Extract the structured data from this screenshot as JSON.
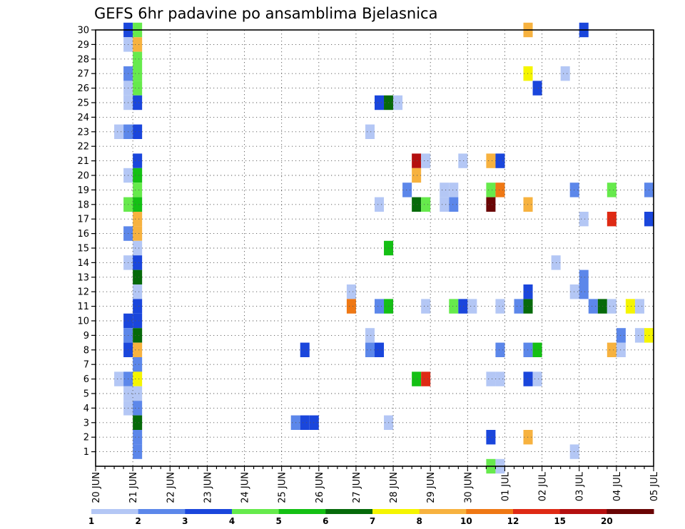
{
  "chart_data": {
    "type": "heatmap",
    "title": "GEFS 6hr padavine po ansamblima Bjelasnica",
    "xlabel": "",
    "ylabel": "",
    "x_start": "20 JUN",
    "x_step_hours": 6,
    "x_tick_labels": [
      "20 JUN",
      "21 JUN",
      "22 JUN",
      "23 JUN",
      "24 JUN",
      "25 JUN",
      "26 JUN",
      "27 JUN",
      "28 JUN",
      "29 JUN",
      "30 JUN",
      "01 JUL",
      "02 JUL",
      "03 JUL",
      "04 JUL",
      "05 JUL"
    ],
    "y_tick_labels": [
      "1",
      "2",
      "3",
      "4",
      "5",
      "6",
      "7",
      "8",
      "9",
      "10",
      "11",
      "12",
      "13",
      "14",
      "15",
      "16",
      "17",
      "18",
      "19",
      "20",
      "21",
      "22",
      "23",
      "24",
      "25",
      "26",
      "27",
      "28",
      "29",
      "30"
    ],
    "ylim": [
      0,
      30
    ],
    "grid": true,
    "legend_position": "bottom",
    "colorbar": {
      "labels": [
        "1",
        "2",
        "3",
        "4",
        "5",
        "6",
        "7",
        "8",
        "10",
        "12",
        "15",
        "20"
      ],
      "colors": [
        "#b4c7f5",
        "#5c87ea",
        "#1a46dc",
        "#66ea4c",
        "#14c014",
        "#066a0a",
        "#f5f500",
        "#f7b23f",
        "#ef7814",
        "#df2a14",
        "#b40f0f",
        "#6a0505"
      ]
    },
    "cells": [
      {
        "m": 30,
        "t": "20 JUN 18Z",
        "c": 3
      },
      {
        "m": 30,
        "t": "21 JUN 00Z",
        "c": 4
      },
      {
        "m": 29,
        "t": "20 JUN 18Z",
        "c": 1
      },
      {
        "m": 29,
        "t": "21 JUN 00Z",
        "c": 8
      },
      {
        "m": 28,
        "t": "21 JUN 00Z",
        "c": 4
      },
      {
        "m": 27,
        "t": "20 JUN 18Z",
        "c": 2
      },
      {
        "m": 27,
        "t": "21 JUN 00Z",
        "c": 4
      },
      {
        "m": 26,
        "t": "20 JUN 18Z",
        "c": 1
      },
      {
        "m": 26,
        "t": "21 JUN 00Z",
        "c": 4
      },
      {
        "m": 25,
        "t": "20 JUN 18Z",
        "c": 1
      },
      {
        "m": 25,
        "t": "21 JUN 00Z",
        "c": 3
      },
      {
        "m": 23,
        "t": "20 JUN 12Z",
        "c": 1
      },
      {
        "m": 23,
        "t": "20 JUN 18Z",
        "c": 2
      },
      {
        "m": 23,
        "t": "21 JUN 00Z",
        "c": 3
      },
      {
        "m": 21,
        "t": "21 JUN 00Z",
        "c": 3
      },
      {
        "m": 20,
        "t": "20 JUN 18Z",
        "c": 1
      },
      {
        "m": 20,
        "t": "21 JUN 00Z",
        "c": 5
      },
      {
        "m": 19,
        "t": "21 JUN 00Z",
        "c": 4
      },
      {
        "m": 18,
        "t": "20 JUN 18Z",
        "c": 4
      },
      {
        "m": 18,
        "t": "21 JUN 00Z",
        "c": 5
      },
      {
        "m": 17,
        "t": "21 JUN 00Z",
        "c": 8
      },
      {
        "m": 16,
        "t": "20 JUN 18Z",
        "c": 2
      },
      {
        "m": 16,
        "t": "21 JUN 00Z",
        "c": 8
      },
      {
        "m": 15,
        "t": "21 JUN 00Z",
        "c": 1
      },
      {
        "m": 14,
        "t": "20 JUN 18Z",
        "c": 1
      },
      {
        "m": 14,
        "t": "21 JUN 00Z",
        "c": 3
      },
      {
        "m": 13,
        "t": "21 JUN 00Z",
        "c": 6
      },
      {
        "m": 12,
        "t": "21 JUN 00Z",
        "c": 1
      },
      {
        "m": 11,
        "t": "21 JUN 00Z",
        "c": 3
      },
      {
        "m": 10,
        "t": "20 JUN 18Z",
        "c": 3
      },
      {
        "m": 10,
        "t": "21 JUN 00Z",
        "c": 3
      },
      {
        "m": 9,
        "t": "20 JUN 18Z",
        "c": 2
      },
      {
        "m": 9,
        "t": "21 JUN 00Z",
        "c": 6
      },
      {
        "m": 8,
        "t": "20 JUN 18Z",
        "c": 3
      },
      {
        "m": 8,
        "t": "21 JUN 00Z",
        "c": 8
      },
      {
        "m": 7,
        "t": "21 JUN 00Z",
        "c": 2
      },
      {
        "m": 6,
        "t": "20 JUN 12Z",
        "c": 1
      },
      {
        "m": 6,
        "t": "20 JUN 18Z",
        "c": 2
      },
      {
        "m": 6,
        "t": "21 JUN 00Z",
        "c": 7
      },
      {
        "m": 5,
        "t": "20 JUN 18Z",
        "c": 1
      },
      {
        "m": 5,
        "t": "21 JUN 00Z",
        "c": 1
      },
      {
        "m": 4,
        "t": "20 JUN 18Z",
        "c": 1
      },
      {
        "m": 4,
        "t": "21 JUN 00Z",
        "c": 2
      },
      {
        "m": 3,
        "t": "21 JUN 00Z",
        "c": 6
      },
      {
        "m": 2,
        "t": "21 JUN 00Z",
        "c": 2
      },
      {
        "m": 1,
        "t": "21 JUN 00Z",
        "c": 2
      },
      {
        "m": 8,
        "t": "25 JUN 12Z",
        "c": 3
      },
      {
        "m": 3,
        "t": "25 JUN 06Z",
        "c": 2
      },
      {
        "m": 3,
        "t": "25 JUN 12Z",
        "c": 3
      },
      {
        "m": 3,
        "t": "25 JUN 18Z",
        "c": 3
      },
      {
        "m": 12,
        "t": "26 JUN 18Z",
        "c": 1
      },
      {
        "m": 11,
        "t": "26 JUN 18Z",
        "c": 9
      },
      {
        "m": 23,
        "t": "27 JUN 06Z",
        "c": 1
      },
      {
        "m": 9,
        "t": "27 JUN 06Z",
        "c": 1
      },
      {
        "m": 8,
        "t": "27 JUN 06Z",
        "c": 2
      },
      {
        "m": 8,
        "t": "27 JUN 12Z",
        "c": 3
      },
      {
        "m": 25,
        "t": "27 JUN 12Z",
        "c": 3
      },
      {
        "m": 25,
        "t": "27 JUN 18Z",
        "c": 6
      },
      {
        "m": 25,
        "t": "28 JUN 00Z",
        "c": 1
      },
      {
        "m": 18,
        "t": "27 JUN 12Z",
        "c": 1
      },
      {
        "m": 11,
        "t": "27 JUN 12Z",
        "c": 2
      },
      {
        "m": 11,
        "t": "27 JUN 18Z",
        "c": 5
      },
      {
        "m": 15,
        "t": "27 JUN 18Z",
        "c": 5
      },
      {
        "m": 3,
        "t": "27 JUN 18Z",
        "c": 1
      },
      {
        "m": 19,
        "t": "28 JUN 06Z",
        "c": 2
      },
      {
        "m": 21,
        "t": "28 JUN 12Z",
        "c": 11
      },
      {
        "m": 21,
        "t": "28 JUN 18Z",
        "c": 1
      },
      {
        "m": 20,
        "t": "28 JUN 12Z",
        "c": 8
      },
      {
        "m": 18,
        "t": "28 JUN 12Z",
        "c": 6
      },
      {
        "m": 18,
        "t": "28 JUN 18Z",
        "c": 4
      },
      {
        "m": 6,
        "t": "28 JUN 12Z",
        "c": 5
      },
      {
        "m": 6,
        "t": "28 JUN 18Z",
        "c": 10
      },
      {
        "m": 11,
        "t": "28 JUN 18Z",
        "c": 1
      },
      {
        "m": 19,
        "t": "29 JUN 06Z",
        "c": 1
      },
      {
        "m": 19,
        "t": "29 JUN 12Z",
        "c": 1
      },
      {
        "m": 18,
        "t": "29 JUN 06Z",
        "c": 1
      },
      {
        "m": 18,
        "t": "29 JUN 12Z",
        "c": 2
      },
      {
        "m": 21,
        "t": "29 JUN 18Z",
        "c": 1
      },
      {
        "m": 11,
        "t": "29 JUN 12Z",
        "c": 4
      },
      {
        "m": 11,
        "t": "29 JUN 18Z",
        "c": 3
      },
      {
        "m": 11,
        "t": "30 JUN 00Z",
        "c": 1
      },
      {
        "m": 21,
        "t": "30 JUN 12Z",
        "c": 8
      },
      {
        "m": 21,
        "t": "30 JUN 18Z",
        "c": 3
      },
      {
        "m": 19,
        "t": "30 JUN 12Z",
        "c": 4
      },
      {
        "m": 19,
        "t": "30 JUN 18Z",
        "c": 9
      },
      {
        "m": 18,
        "t": "30 JUN 12Z",
        "c": 12
      },
      {
        "m": 11,
        "t": "30 JUN 18Z",
        "c": 1
      },
      {
        "m": 8,
        "t": "30 JUN 18Z",
        "c": 2
      },
      {
        "m": 6,
        "t": "30 JUN 12Z",
        "c": 1
      },
      {
        "m": 6,
        "t": "30 JUN 18Z",
        "c": 1
      },
      {
        "m": 2,
        "t": "30 JUN 12Z",
        "c": 3
      },
      {
        "m": 0,
        "t": "30 JUN 12Z",
        "c": 4
      },
      {
        "m": 0,
        "t": "30 JUN 18Z",
        "c": 1
      },
      {
        "m": 11,
        "t": "01 JUL 06Z",
        "c": 2
      },
      {
        "m": 11,
        "t": "01 JUL 12Z",
        "c": 6
      },
      {
        "m": 12,
        "t": "01 JUL 12Z",
        "c": 3
      },
      {
        "m": 8,
        "t": "01 JUL 12Z",
        "c": 2
      },
      {
        "m": 8,
        "t": "01 JUL 18Z",
        "c": 5
      },
      {
        "m": 6,
        "t": "01 JUL 12Z",
        "c": 3
      },
      {
        "m": 6,
        "t": "01 JUL 18Z",
        "c": 1
      },
      {
        "m": 2,
        "t": "01 JUL 12Z",
        "c": 8
      },
      {
        "m": 30,
        "t": "01 JUL 12Z",
        "c": 8
      },
      {
        "m": 27,
        "t": "01 JUL 12Z",
        "c": 7
      },
      {
        "m": 26,
        "t": "01 JUL 18Z",
        "c": 3
      },
      {
        "m": 18,
        "t": "01 JUL 12Z",
        "c": 8
      },
      {
        "m": 14,
        "t": "02 JUL 06Z",
        "c": 1
      },
      {
        "m": 27,
        "t": "02 JUL 12Z",
        "c": 1
      },
      {
        "m": 19,
        "t": "02 JUL 18Z",
        "c": 2
      },
      {
        "m": 12,
        "t": "02 JUL 18Z",
        "c": 1
      },
      {
        "m": 1,
        "t": "02 JUL 18Z",
        "c": 1
      },
      {
        "m": 30,
        "t": "03 JUL 00Z",
        "c": 3
      },
      {
        "m": 17,
        "t": "03 JUL 00Z",
        "c": 1
      },
      {
        "m": 13,
        "t": "03 JUL 00Z",
        "c": 2
      },
      {
        "m": 12,
        "t": "03 JUL 00Z",
        "c": 2
      },
      {
        "m": 11,
        "t": "03 JUL 06Z",
        "c": 2
      },
      {
        "m": 11,
        "t": "03 JUL 12Z",
        "c": 6
      },
      {
        "m": 11,
        "t": "03 JUL 18Z",
        "c": 1
      },
      {
        "m": 19,
        "t": "03 JUL 18Z",
        "c": 4
      },
      {
        "m": 17,
        "t": "03 JUL 18Z",
        "c": 10
      },
      {
        "m": 8,
        "t": "03 JUL 18Z",
        "c": 8
      },
      {
        "m": 8,
        "t": "04 JUL 00Z",
        "c": 1
      },
      {
        "m": 9,
        "t": "04 JUL 00Z",
        "c": 2
      },
      {
        "m": 11,
        "t": "04 JUL 06Z",
        "c": 7
      },
      {
        "m": 11,
        "t": "04 JUL 12Z",
        "c": 1
      },
      {
        "m": 9,
        "t": "04 JUL 12Z",
        "c": 1
      },
      {
        "m": 9,
        "t": "04 JUL 18Z",
        "c": 7
      },
      {
        "m": 19,
        "t": "04 JUL 18Z",
        "c": 2
      },
      {
        "m": 17,
        "t": "04 JUL 18Z",
        "c": 3
      }
    ]
  }
}
